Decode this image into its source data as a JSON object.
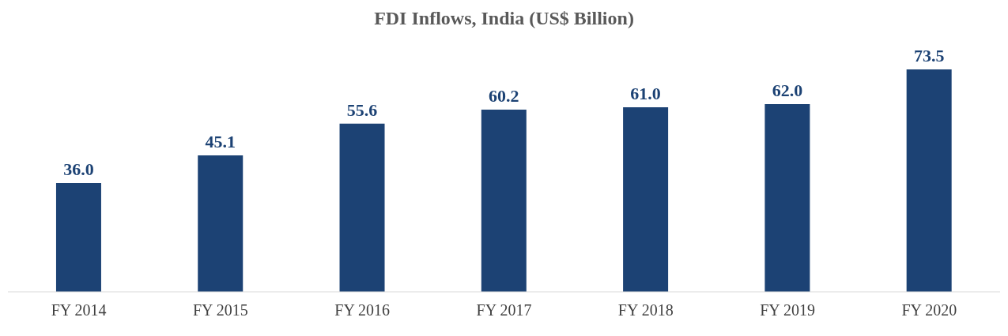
{
  "chart_data": {
    "type": "bar",
    "title": "FDI Inflows, India (US$ Billion)",
    "categories": [
      "FY 2014",
      "FY 2015",
      "FY 2016",
      "FY 2017",
      "FY 2018",
      "FY 2019",
      "FY 2020"
    ],
    "values": [
      36.0,
      45.1,
      55.6,
      60.2,
      61.0,
      62.0,
      73.5
    ],
    "value_labels": [
      "36.0",
      "45.1",
      "55.6",
      "60.2",
      "61.0",
      "62.0",
      "73.5"
    ],
    "color": "#1c4274",
    "grid": false,
    "legend": false
  }
}
